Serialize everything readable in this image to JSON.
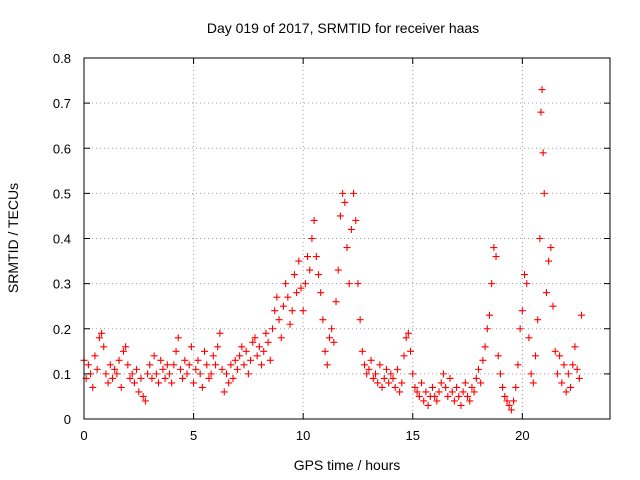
{
  "chart_data": {
    "type": "scatter",
    "title": "Day 019 of 2017, SRMTID for receiver haas",
    "xlabel": "GPS time / hours",
    "ylabel": "SRMTID / TECUs",
    "xlim": [
      0,
      24
    ],
    "ylim": [
      0,
      0.8
    ],
    "x_ticks": [
      0,
      5,
      10,
      15,
      20
    ],
    "x_tick_labels": [
      "0",
      "5",
      "10",
      "15",
      "20"
    ],
    "y_ticks": [
      0,
      0.1,
      0.2,
      0.3,
      0.4,
      0.5,
      0.6,
      0.7,
      0.8
    ],
    "y_tick_labels": [
      "0",
      "0.1",
      "0.2",
      "0.3",
      "0.4",
      "0.5",
      "0.6",
      "0.7",
      "0.8"
    ],
    "grid": true,
    "marker": "+",
    "color": "#ff0000",
    "series": [
      {
        "name": "SRMTID",
        "points": [
          [
            0.0,
            0.13
          ],
          [
            0.1,
            0.09
          ],
          [
            0.2,
            0.12
          ],
          [
            0.3,
            0.1
          ],
          [
            0.4,
            0.07
          ],
          [
            0.5,
            0.14
          ],
          [
            0.6,
            0.11
          ],
          [
            0.7,
            0.18
          ],
          [
            0.8,
            0.19
          ],
          [
            0.9,
            0.16
          ],
          [
            1.0,
            0.1
          ],
          [
            1.1,
            0.08
          ],
          [
            1.2,
            0.12
          ],
          [
            1.3,
            0.09
          ],
          [
            1.4,
            0.11
          ],
          [
            1.5,
            0.1
          ],
          [
            1.6,
            0.13
          ],
          [
            1.7,
            0.07
          ],
          [
            1.8,
            0.15
          ],
          [
            1.9,
            0.16
          ],
          [
            2.0,
            0.12
          ],
          [
            2.1,
            0.09
          ],
          [
            2.2,
            0.1
          ],
          [
            2.3,
            0.08
          ],
          [
            2.4,
            0.11
          ],
          [
            2.5,
            0.06
          ],
          [
            2.6,
            0.09
          ],
          [
            2.7,
            0.05
          ],
          [
            2.8,
            0.04
          ],
          [
            2.9,
            0.1
          ],
          [
            3.0,
            0.12
          ],
          [
            3.1,
            0.09
          ],
          [
            3.2,
            0.14
          ],
          [
            3.3,
            0.1
          ],
          [
            3.4,
            0.08
          ],
          [
            3.5,
            0.13
          ],
          [
            3.6,
            0.11
          ],
          [
            3.7,
            0.09
          ],
          [
            3.8,
            0.12
          ],
          [
            3.9,
            0.1
          ],
          [
            4.0,
            0.08
          ],
          [
            4.1,
            0.12
          ],
          [
            4.2,
            0.15
          ],
          [
            4.3,
            0.18
          ],
          [
            4.4,
            0.11
          ],
          [
            4.5,
            0.09
          ],
          [
            4.6,
            0.13
          ],
          [
            4.7,
            0.1
          ],
          [
            4.8,
            0.12
          ],
          [
            4.9,
            0.16
          ],
          [
            5.0,
            0.08
          ],
          [
            5.1,
            0.11
          ],
          [
            5.2,
            0.13
          ],
          [
            5.3,
            0.1
          ],
          [
            5.4,
            0.07
          ],
          [
            5.5,
            0.15
          ],
          [
            5.6,
            0.12
          ],
          [
            5.7,
            0.09
          ],
          [
            5.8,
            0.1
          ],
          [
            5.9,
            0.14
          ],
          [
            6.0,
            0.12
          ],
          [
            6.1,
            0.16
          ],
          [
            6.2,
            0.19
          ],
          [
            6.3,
            0.11
          ],
          [
            6.4,
            0.06
          ],
          [
            6.5,
            0.1
          ],
          [
            6.6,
            0.08
          ],
          [
            6.7,
            0.12
          ],
          [
            6.8,
            0.09
          ],
          [
            6.9,
            0.13
          ],
          [
            7.0,
            0.11
          ],
          [
            7.1,
            0.14
          ],
          [
            7.2,
            0.16
          ],
          [
            7.3,
            0.12
          ],
          [
            7.4,
            0.15
          ],
          [
            7.5,
            0.1
          ],
          [
            7.6,
            0.13
          ],
          [
            7.7,
            0.17
          ],
          [
            7.8,
            0.18
          ],
          [
            7.9,
            0.14
          ],
          [
            8.0,
            0.16
          ],
          [
            8.1,
            0.12
          ],
          [
            8.2,
            0.15
          ],
          [
            8.3,
            0.19
          ],
          [
            8.4,
            0.17
          ],
          [
            8.5,
            0.13
          ],
          [
            8.6,
            0.2
          ],
          [
            8.7,
            0.24
          ],
          [
            8.8,
            0.27
          ],
          [
            8.9,
            0.22
          ],
          [
            9.0,
            0.18
          ],
          [
            9.1,
            0.25
          ],
          [
            9.2,
            0.3
          ],
          [
            9.3,
            0.27
          ],
          [
            9.4,
            0.21
          ],
          [
            9.5,
            0.24
          ],
          [
            9.6,
            0.32
          ],
          [
            9.7,
            0.28
          ],
          [
            9.8,
            0.35
          ],
          [
            9.9,
            0.29
          ],
          [
            10.0,
            0.24
          ],
          [
            10.1,
            0.3
          ],
          [
            10.2,
            0.36
          ],
          [
            10.3,
            0.33
          ],
          [
            10.4,
            0.4
          ],
          [
            10.5,
            0.44
          ],
          [
            10.6,
            0.36
          ],
          [
            10.7,
            0.32
          ],
          [
            10.8,
            0.28
          ],
          [
            10.9,
            0.22
          ],
          [
            11.0,
            0.15
          ],
          [
            11.1,
            0.12
          ],
          [
            11.2,
            0.18
          ],
          [
            11.3,
            0.2
          ],
          [
            11.4,
            0.17
          ],
          [
            11.5,
            0.26
          ],
          [
            11.6,
            0.33
          ],
          [
            11.7,
            0.45
          ],
          [
            11.8,
            0.5
          ],
          [
            11.9,
            0.48
          ],
          [
            12.0,
            0.38
          ],
          [
            12.1,
            0.3
          ],
          [
            12.2,
            0.42
          ],
          [
            12.3,
            0.5
          ],
          [
            12.4,
            0.44
          ],
          [
            12.5,
            0.3
          ],
          [
            12.6,
            0.22
          ],
          [
            12.7,
            0.15
          ],
          [
            12.8,
            0.12
          ],
          [
            12.9,
            0.1
          ],
          [
            13.0,
            0.11
          ],
          [
            13.1,
            0.13
          ],
          [
            13.2,
            0.09
          ],
          [
            13.3,
            0.1
          ],
          [
            13.4,
            0.08
          ],
          [
            13.5,
            0.12
          ],
          [
            13.6,
            0.07
          ],
          [
            13.7,
            0.09
          ],
          [
            13.8,
            0.11
          ],
          [
            13.9,
            0.08
          ],
          [
            14.0,
            0.1
          ],
          [
            14.1,
            0.09
          ],
          [
            14.2,
            0.07
          ],
          [
            14.3,
            0.11
          ],
          [
            14.4,
            0.06
          ],
          [
            14.5,
            0.08
          ],
          [
            14.6,
            0.14
          ],
          [
            14.7,
            0.18
          ],
          [
            14.8,
            0.19
          ],
          [
            14.9,
            0.15
          ],
          [
            15.0,
            0.1
          ],
          [
            15.1,
            0.07
          ],
          [
            15.2,
            0.06
          ],
          [
            15.3,
            0.05
          ],
          [
            15.4,
            0.08
          ],
          [
            15.5,
            0.04
          ],
          [
            15.6,
            0.06
          ],
          [
            15.7,
            0.03
          ],
          [
            15.8,
            0.05
          ],
          [
            15.9,
            0.07
          ],
          [
            16.0,
            0.05
          ],
          [
            16.1,
            0.04
          ],
          [
            16.2,
            0.06
          ],
          [
            16.3,
            0.08
          ],
          [
            16.4,
            0.1
          ],
          [
            16.5,
            0.07
          ],
          [
            16.6,
            0.05
          ],
          [
            16.7,
            0.09
          ],
          [
            16.8,
            0.06
          ],
          [
            16.9,
            0.04
          ],
          [
            17.0,
            0.07
          ],
          [
            17.1,
            0.05
          ],
          [
            17.2,
            0.03
          ],
          [
            17.3,
            0.06
          ],
          [
            17.4,
            0.08
          ],
          [
            17.5,
            0.05
          ],
          [
            17.6,
            0.04
          ],
          [
            17.7,
            0.07
          ],
          [
            17.8,
            0.06
          ],
          [
            17.9,
            0.09
          ],
          [
            18.0,
            0.11
          ],
          [
            18.1,
            0.08
          ],
          [
            18.2,
            0.13
          ],
          [
            18.3,
            0.16
          ],
          [
            18.4,
            0.2
          ],
          [
            18.5,
            0.23
          ],
          [
            18.6,
            0.3
          ],
          [
            18.7,
            0.38
          ],
          [
            18.8,
            0.36
          ],
          [
            18.9,
            0.14
          ],
          [
            19.0,
            0.1
          ],
          [
            19.1,
            0.07
          ],
          [
            19.2,
            0.05
          ],
          [
            19.3,
            0.04
          ],
          [
            19.4,
            0.03
          ],
          [
            19.5,
            0.02
          ],
          [
            19.6,
            0.04
          ],
          [
            19.7,
            0.07
          ],
          [
            19.8,
            0.12
          ],
          [
            19.9,
            0.2
          ],
          [
            20.0,
            0.24
          ],
          [
            20.1,
            0.32
          ],
          [
            20.2,
            0.3
          ],
          [
            20.3,
            0.18
          ],
          [
            20.4,
            0.1
          ],
          [
            20.5,
            0.08
          ],
          [
            20.6,
            0.14
          ],
          [
            20.7,
            0.22
          ],
          [
            20.8,
            0.4
          ],
          [
            20.85,
            0.68
          ],
          [
            20.9,
            0.73
          ],
          [
            20.95,
            0.59
          ],
          [
            21.0,
            0.5
          ],
          [
            21.1,
            0.28
          ],
          [
            21.2,
            0.35
          ],
          [
            21.3,
            0.38
          ],
          [
            21.4,
            0.25
          ],
          [
            21.5,
            0.15
          ],
          [
            21.6,
            0.1
          ],
          [
            21.7,
            0.14
          ],
          [
            21.8,
            0.08
          ],
          [
            21.9,
            0.12
          ],
          [
            22.0,
            0.06
          ],
          [
            22.1,
            0.1
          ],
          [
            22.2,
            0.07
          ],
          [
            22.3,
            0.12
          ],
          [
            22.4,
            0.16
          ],
          [
            22.5,
            0.11
          ],
          [
            22.6,
            0.09
          ],
          [
            22.7,
            0.23
          ]
        ]
      }
    ]
  }
}
